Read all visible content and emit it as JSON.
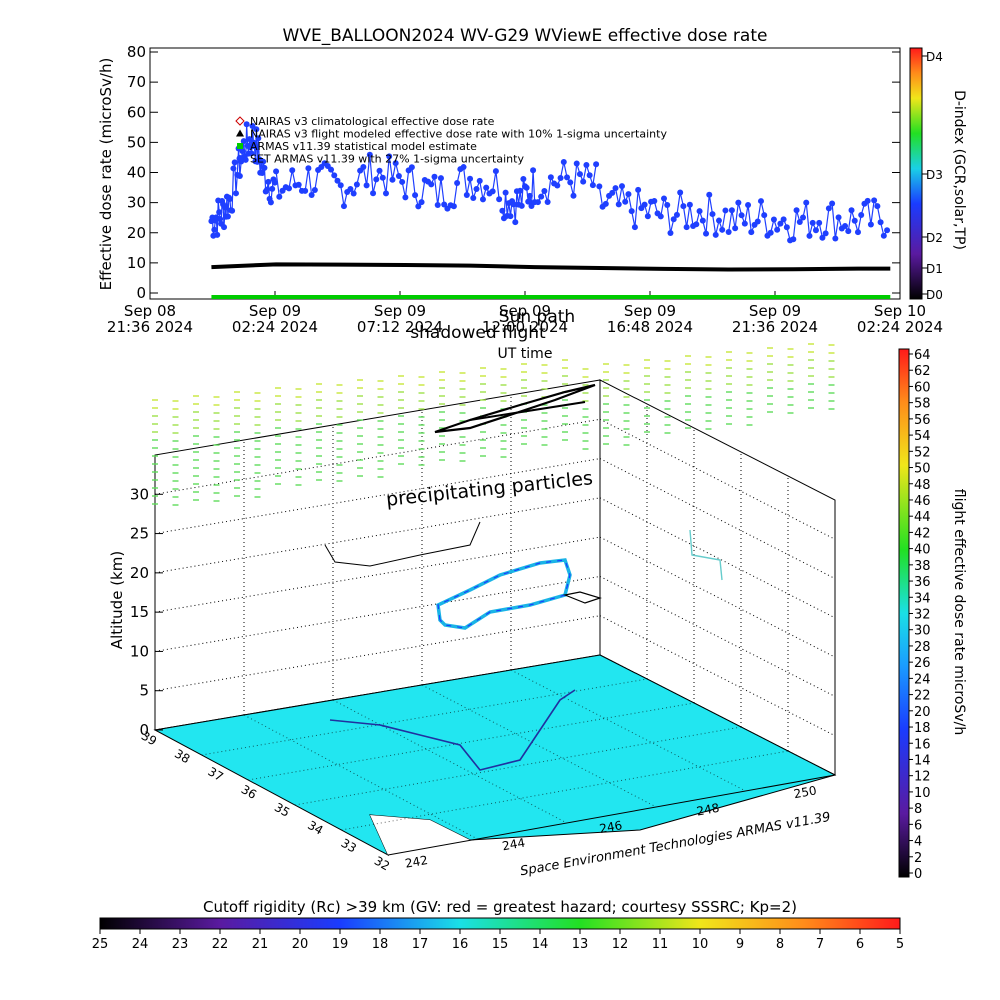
{
  "title": "WVE_BALLOON2024 WV-G29 WViewE effective dose rate",
  "top_chart": {
    "type": "line",
    "ylabel": "Effective dose rate (microSv/h)",
    "xlabel": "UT time",
    "ylim": [
      0,
      80
    ],
    "y_ticks": [
      "0",
      "10",
      "20",
      "30",
      "40",
      "50",
      "60",
      "70",
      "80"
    ],
    "x_ticks": [
      {
        "day": "Sep 08",
        "time": "21:36 2024"
      },
      {
        "day": "Sep 09",
        "time": "02:24 2024"
      },
      {
        "day": "Sep 09",
        "time": "07:12 2024"
      },
      {
        "day": "Sep 09",
        "time": "12:00 2024"
      },
      {
        "day": "Sep 09",
        "time": "16:48 2024"
      },
      {
        "day": "Sep 09",
        "time": "21:36 2024"
      },
      {
        "day": "Sep 10",
        "time": "02:24 2024"
      }
    ],
    "overlay_labels": [
      "Sun path",
      "shadowed flight"
    ],
    "legend": [
      {
        "label": "NAIRAS v3 climatological effective dose rate",
        "marker": "diamond",
        "color": "#cc0000"
      },
      {
        "label": "NAIRAS v3 flight modeled effective dose rate with 10% 1-sigma uncertainty",
        "marker": "triangle",
        "color": "#000000"
      },
      {
        "label": "ARMAS v11.39 statistical model estimate",
        "marker": "square",
        "color": "#00cc00"
      },
      {
        "label": "SET ARMAS v11.39 with 27% 1-sigma uncertainty",
        "marker": "circle",
        "color": "#1f3fff"
      }
    ],
    "right_axis_label": "D-index (GCR,solar,TP)",
    "right_axis_ticks": [
      "D0",
      "D1",
      "D2",
      "D3",
      "D4"
    ],
    "series": [
      {
        "name": "SET ARMAS v11.39 with 27% 1-sigma uncertainty",
        "color": "#1f3fff",
        "segments": [
          {
            "x": [
              0.0,
              0.3,
              0.6,
              1.0,
              1.3,
              1.6,
              2.0
            ],
            "y": [
              24,
              26,
              32,
              48,
              52,
              40,
              34
            ]
          },
          {
            "x": [
              2.0,
              3.0,
              4.0,
              5.0,
              6.0,
              7.0,
              8.0,
              9.0
            ],
            "y": [
              34,
              38,
              35,
              40,
              37,
              33,
              38,
              36
            ]
          },
          {
            "x": [
              9.0,
              9.5,
              10.0,
              11.0,
              12.0
            ],
            "y": [
              32,
              30,
              36,
              38,
              36
            ]
          },
          {
            "x": [
              12.0,
              13.0,
              14.0,
              15.0,
              16.0
            ],
            "y": [
              30,
              28,
              26,
              27,
              25
            ]
          },
          {
            "x": [
              16.0,
              17.0,
              18.0,
              19.0,
              20.0,
              21.0
            ],
            "y": [
              24,
              25,
              24,
              25,
              24,
              25
            ]
          }
        ]
      },
      {
        "name": "NAIRAS v3 flight modeled effective dose rate with 10% 1-sigma uncertainty",
        "color": "#000000",
        "x": [
          0.0,
          2.0,
          4.0,
          6.0,
          8.0,
          10.0,
          12.0,
          14.0,
          16.0,
          18.0,
          20.0,
          21.0
        ],
        "y": [
          8.6,
          9.5,
          9.4,
          9.3,
          9.1,
          8.6,
          8.3,
          8.0,
          7.8,
          7.9,
          8.1,
          8.1
        ]
      },
      {
        "name": "ARMAS v11.39 statistical model estimate",
        "color": "#00cc00",
        "x": [
          0.0,
          21.0
        ],
        "y": [
          0.0,
          0.0
        ]
      }
    ]
  },
  "bottom_chart": {
    "type": "3d-surface",
    "ylabel": "Altitude (km)",
    "z_ticks": [
      "0",
      "5",
      "10",
      "15",
      "20",
      "25",
      "30"
    ],
    "lon_ticks": [
      "242",
      "244",
      "246",
      "248",
      "250"
    ],
    "lat_ticks": [
      "39",
      "38",
      "37",
      "36",
      "35",
      "34",
      "33",
      "32"
    ],
    "annotation": "precipitating particles",
    "credit": "Space Environment Technologies ARMAS v11.39",
    "surface_color": "#22e6f0",
    "right_colorbar_label": "flight effective dose rate microSv/h",
    "right_colorbar_ticks": [
      "0",
      "2",
      "4",
      "6",
      "8",
      "10",
      "12",
      "14",
      "16",
      "18",
      "20",
      "22",
      "24",
      "26",
      "28",
      "30",
      "32",
      "34",
      "36",
      "38",
      "40",
      "42",
      "44",
      "46",
      "48",
      "50",
      "52",
      "54",
      "56",
      "58",
      "60",
      "62",
      "64"
    ]
  },
  "cutoff_bar": {
    "label": "Cutoff rigidity (Rc) >39 km (GV: red = greatest hazard; courtesy SSSRC; Kp=2)",
    "ticks": [
      "25",
      "24",
      "23",
      "22",
      "21",
      "20",
      "19",
      "18",
      "17",
      "16",
      "15",
      "14",
      "13",
      "12",
      "11",
      "10",
      "9",
      "8",
      "7",
      "6",
      "5"
    ]
  }
}
